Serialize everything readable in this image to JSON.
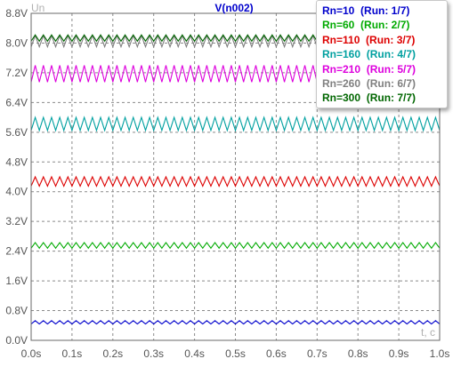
{
  "chart_data": {
    "type": "line",
    "title": "V(n002)",
    "xlabel": "t, c",
    "ylabel": "Un",
    "xlim": [
      0,
      1.0
    ],
    "ylim": [
      0,
      8.8
    ],
    "x_ticks": [
      "0.0s",
      "0.1s",
      "0.2s",
      "0.3s",
      "0.4s",
      "0.5s",
      "0.6s",
      "0.7s",
      "0.8s",
      "0.9s",
      "1.0s"
    ],
    "y_ticks": [
      "0.0V",
      "0.8V",
      "1.6V",
      "2.4V",
      "3.2V",
      "4.0V",
      "4.8V",
      "5.6V",
      "6.4V",
      "7.2V",
      "8.0V",
      "8.8V"
    ],
    "grid": true,
    "legend_position": "top-right",
    "ripple_cycles": 50,
    "series": [
      {
        "name": "Rn=10",
        "run": "(Run: 1/7)",
        "color": "#0000cc",
        "min": 0.44,
        "max": 0.53
      },
      {
        "name": "Rn=60",
        "run": "(Run: 2/7)",
        "color": "#00aa00",
        "min": 2.48,
        "max": 2.63
      },
      {
        "name": "Rn=110",
        "run": "(Run: 3/7)",
        "color": "#dd0000",
        "min": 4.15,
        "max": 4.4
      },
      {
        "name": "Rn=160",
        "run": "(Run: 4/7)",
        "color": "#00a0a0",
        "min": 5.65,
        "max": 6.0
      },
      {
        "name": "Rn=210",
        "run": "(Run: 5/7)",
        "color": "#dd00dd",
        "min": 6.95,
        "max": 7.4
      },
      {
        "name": "Rn=260",
        "run": "(Run: 6/7)",
        "color": "#808080",
        "min": 7.9,
        "max": 8.2
      },
      {
        "name": "Rn=300",
        "run": "(Run: 7/7)",
        "color": "#006600",
        "min": 8.05,
        "max": 8.22
      }
    ]
  }
}
